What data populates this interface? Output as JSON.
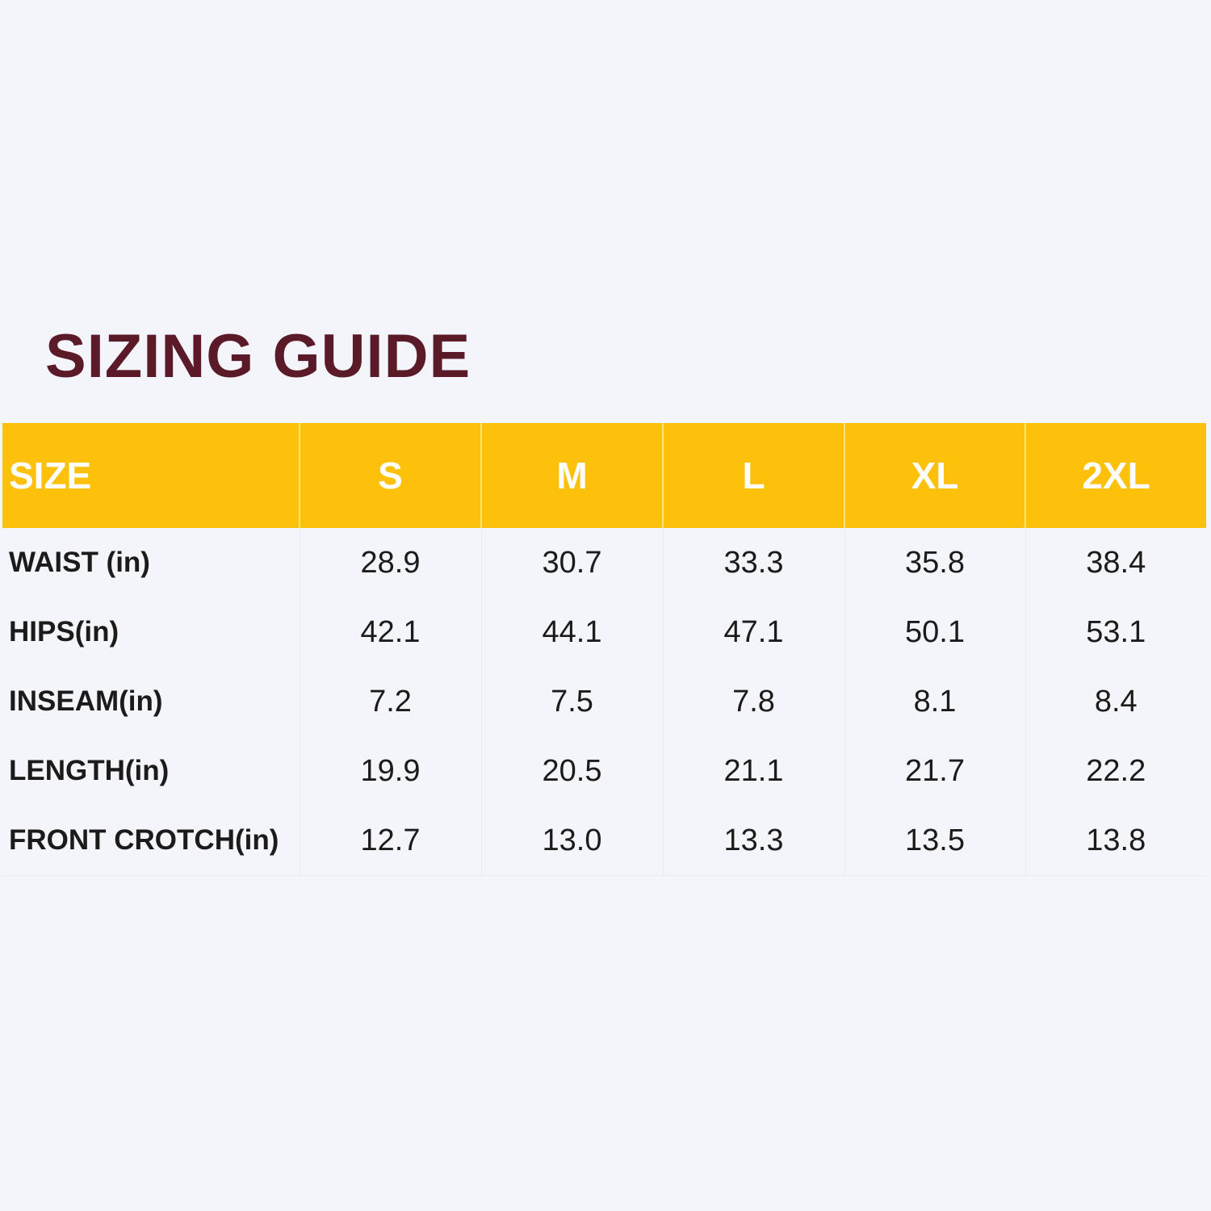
{
  "title": "SIZING GUIDE",
  "colors": {
    "title": "#5b1a28",
    "header_bg": "#fdc10b",
    "header_text": "#ffffff",
    "background": "#f4f5fa",
    "body_text": "#1b1b1b"
  },
  "table": {
    "headers": [
      "SIZE",
      "S",
      "M",
      "L",
      "XL",
      "2XL"
    ],
    "rows": [
      {
        "label": "WAIST (in)",
        "values": [
          "28.9",
          "30.7",
          "33.3",
          "35.8",
          "38.4"
        ]
      },
      {
        "label": "HIPS(in)",
        "values": [
          "42.1",
          "44.1",
          "47.1",
          "50.1",
          "53.1"
        ]
      },
      {
        "label": "INSEAM(in)",
        "values": [
          "7.2",
          "7.5",
          "7.8",
          "8.1",
          "8.4"
        ]
      },
      {
        "label": "LENGTH(in)",
        "values": [
          "19.9",
          "20.5",
          "21.1",
          "21.7",
          "22.2"
        ]
      },
      {
        "label": "FRONT CROTCH(in)",
        "values": [
          "12.7",
          "13.0",
          "13.3",
          "13.5",
          "13.8"
        ]
      }
    ]
  }
}
